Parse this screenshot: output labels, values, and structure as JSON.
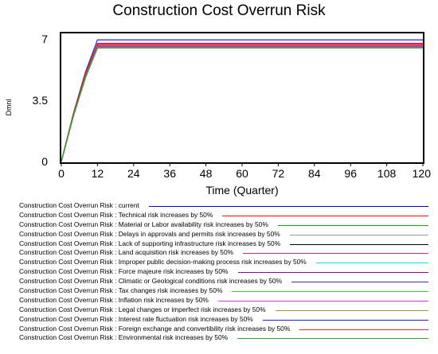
{
  "chart_data": {
    "type": "line",
    "title": "Construction Cost Overrun Risk",
    "xlabel": "Time (Quarter)",
    "ylabel": "Dmnl",
    "xlim": [
      0,
      120
    ],
    "ylim": [
      0,
      7
    ],
    "x_ticks": [
      "0",
      "12",
      "24",
      "36",
      "48",
      "60",
      "72",
      "84",
      "96",
      "108",
      "120"
    ],
    "y_ticks": [
      "0",
      "3.5",
      "7"
    ],
    "grid": false,
    "legend_position": "bottom",
    "series": [
      {
        "name": "Construction Cost Overrun Risk : current",
        "color": "#0000cc",
        "x": [
          0,
          4,
          8,
          12,
          120
        ],
        "y": [
          0,
          2.6,
          4.8,
          6.5,
          6.5
        ]
      },
      {
        "name": "Construction Cost Overrun Risk : Technical risk increases by 50%",
        "color": "#ff0000",
        "x": [
          0,
          4,
          8,
          12,
          120
        ],
        "y": [
          0,
          2.65,
          4.9,
          6.7,
          6.7
        ]
      },
      {
        "name": "Construction Cost Overrun Risk : Material or Labor availability risk increases by 50%",
        "color": "#00aa00",
        "x": [
          0,
          4,
          8,
          12,
          120
        ],
        "y": [
          0,
          2.6,
          4.8,
          6.52,
          6.52
        ]
      },
      {
        "name": "Construction Cost Overrun Risk : Delays in approvals and permits risk increases by 50%",
        "color": "#999999",
        "x": [
          0,
          4,
          8,
          12,
          120
        ],
        "y": [
          0,
          2.62,
          4.82,
          6.55,
          6.55
        ]
      },
      {
        "name": "Construction Cost Overrun Risk : Lack of supporting infrastructure risk increases by 50%",
        "color": "#000000",
        "x": [
          0,
          4,
          8,
          12,
          120
        ],
        "y": [
          0,
          2.6,
          4.8,
          6.5,
          6.5
        ]
      },
      {
        "name": "Construction Cost Overrun Risk : Land acquisition risk increases by 50%",
        "color": "#cc3355",
        "x": [
          0,
          4,
          8,
          12,
          120
        ],
        "y": [
          0,
          2.63,
          4.86,
          6.6,
          6.6
        ]
      },
      {
        "name": "Construction Cost Overrun Risk : Improper public decision-making process risk increases by 50%",
        "color": "#00e5e5",
        "x": [
          0,
          4,
          8,
          12,
          120
        ],
        "y": [
          0,
          2.6,
          4.8,
          6.52,
          6.52
        ]
      },
      {
        "name": "Construction Cost Overrun Risk : Force majeure risk increases by 50%",
        "color": "#990099",
        "x": [
          0,
          4,
          8,
          12,
          120
        ],
        "y": [
          0,
          2.64,
          4.88,
          6.62,
          6.62
        ]
      },
      {
        "name": "Construction Cost Overrun Risk : Climatic or Geological conditions risk increases by 50%",
        "color": "#3333aa",
        "x": [
          0,
          4,
          8,
          12,
          120
        ],
        "y": [
          0,
          2.61,
          4.81,
          6.53,
          6.53
        ]
      },
      {
        "name": "Construction Cost Overrun Risk : Tax changes risk increases by 50%",
        "color": "#33cc33",
        "x": [
          0,
          4,
          8,
          12,
          120
        ],
        "y": [
          0,
          2.6,
          4.8,
          6.51,
          6.51
        ]
      },
      {
        "name": "Construction Cost Overrun Risk : Inflation risk increases by 50%",
        "color": "#dd33dd",
        "x": [
          0,
          4,
          8,
          12,
          120
        ],
        "y": [
          0,
          2.63,
          4.85,
          6.58,
          6.58
        ]
      },
      {
        "name": "Construction Cost Overrun Risk : Legal changes or imperfect risk increases by 50%",
        "color": "#999933",
        "x": [
          0,
          4,
          8,
          12,
          120
        ],
        "y": [
          0,
          2.6,
          4.8,
          6.52,
          6.52
        ]
      },
      {
        "name": "Construction Cost Overrun Risk : Interest rate fluctuation risk increases by 50%",
        "color": "#2222cc",
        "x": [
          0,
          4,
          8,
          12,
          120
        ],
        "y": [
          0,
          2.75,
          5.1,
          6.95,
          6.95
        ]
      },
      {
        "name": "Construction Cost Overrun Risk : Foreign exchange and convertibility risk increases by 50%",
        "color": "#ee2222",
        "x": [
          0,
          4,
          8,
          12,
          120
        ],
        "y": [
          0,
          2.7,
          5.0,
          6.75,
          6.75
        ]
      },
      {
        "name": "Construction Cost Overrun Risk : Environmental risk increases by 50%",
        "color": "#22aa22",
        "x": [
          0,
          4,
          8,
          12,
          120
        ],
        "y": [
          0,
          2.6,
          4.8,
          6.5,
          6.5
        ]
      }
    ]
  }
}
